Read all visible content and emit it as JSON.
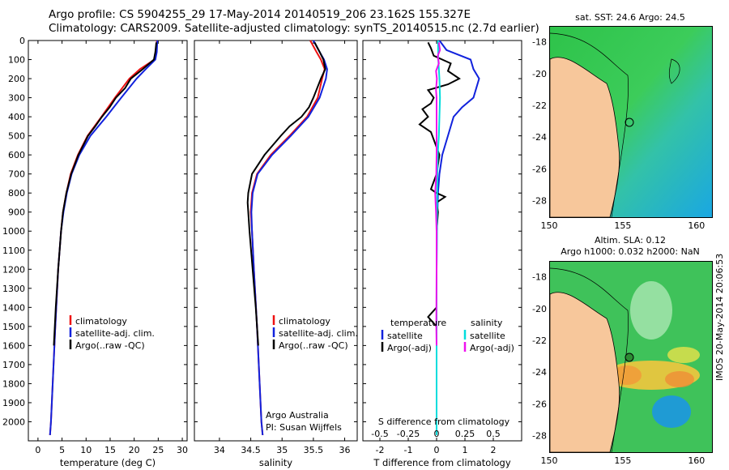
{
  "header": {
    "line1": "Argo profile: CS 5904255_29 17-May-2014 20140519_206 23.162S 155.327E",
    "line2": "Climatology: CARS2009. Satellite-adjusted climatology: synTS_20140515.nc (2.7d earlier)"
  },
  "colors": {
    "climatology": "#ee1111",
    "satellite": "#1122dd",
    "argo": "#000000",
    "sat_salinity": "#00dddd",
    "argo_salinity": "#ee11ee",
    "land": "#f7c79b"
  },
  "chart_data": [
    {
      "type": "line",
      "title": "",
      "xlabel": "temperature (deg C)",
      "ylabel": "",
      "xlim": [
        -2,
        31
      ],
      "ylim": [
        2100,
        0
      ],
      "xticks": [
        0,
        5,
        10,
        15,
        20,
        25,
        30
      ],
      "yticks": [
        0,
        100,
        200,
        300,
        400,
        500,
        600,
        700,
        800,
        900,
        1000,
        1100,
        1200,
        1300,
        1400,
        1500,
        1600,
        1700,
        1800,
        1900,
        2000
      ],
      "legend": [
        "climatology",
        "satellite-adj. clim.",
        "Argo(..raw -QC)"
      ],
      "legend_position": "center-left",
      "series": [
        {
          "name": "climatology",
          "depth": [
            0,
            60,
            100,
            150,
            200,
            300,
            400,
            500,
            600,
            700,
            800,
            900,
            1000,
            1200,
            1500,
            2000,
            2070
          ],
          "values": [
            24.7,
            24.6,
            24.2,
            21.2,
            19,
            16,
            13.2,
            10.3,
            8.3,
            6.8,
            5.9,
            5.2,
            4.8,
            4.2,
            3.6,
            2.7,
            2.5
          ]
        },
        {
          "name": "satellite-adj. clim.",
          "depth": [
            0,
            60,
            100,
            150,
            200,
            300,
            400,
            500,
            600,
            700,
            800,
            900,
            1000,
            1200,
            1500,
            2000,
            2070
          ],
          "values": [
            24.8,
            24.7,
            24.4,
            22.4,
            20.5,
            17.3,
            14.2,
            10.9,
            8.6,
            7,
            6,
            5.3,
            4.8,
            4.2,
            3.6,
            2.7,
            2.5
          ]
        },
        {
          "name": "Argo(..raw -QC)",
          "depth": [
            10,
            60,
            100,
            150,
            200,
            250,
            300,
            350,
            400,
            450,
            500,
            600,
            700,
            800,
            900,
            1000,
            1200,
            1400,
            1500,
            1600
          ],
          "values": [
            24.6,
            24.4,
            24.1,
            21.8,
            19.3,
            18.1,
            16.2,
            14.9,
            13.3,
            11.9,
            10.4,
            8.4,
            6.9,
            5.9,
            5.2,
            4.8,
            4.2,
            3.7,
            3.5,
            3.3
          ]
        }
      ]
    },
    {
      "type": "line",
      "title": "",
      "xlabel": "salinity",
      "ylabel": "",
      "xlim": [
        33.6,
        36.2
      ],
      "ylim": [
        2100,
        0
      ],
      "xticks": [
        34,
        34.5,
        35,
        35.5,
        36
      ],
      "legend": [
        "climatology",
        "satellite-adj. clim.",
        "Argo(..raw -QC)"
      ],
      "legend_position": "center-left",
      "annotations": [
        "Argo Australia",
        "PI: Susan Wijffels"
      ],
      "series": [
        {
          "name": "climatology",
          "depth": [
            0,
            60,
            100,
            150,
            200,
            300,
            400,
            500,
            600,
            700,
            800,
            900,
            1000,
            1200,
            1500,
            2000,
            2070
          ],
          "values": [
            35.45,
            35.55,
            35.62,
            35.68,
            35.64,
            35.57,
            35.4,
            35.12,
            34.82,
            34.6,
            34.52,
            34.5,
            34.52,
            34.55,
            34.6,
            34.67,
            34.69
          ]
        },
        {
          "name": "satellite-adj. clim.",
          "depth": [
            0,
            60,
            100,
            150,
            200,
            300,
            400,
            500,
            600,
            700,
            800,
            900,
            1000,
            1200,
            1500,
            2000,
            2070
          ],
          "values": [
            35.5,
            35.6,
            35.67,
            35.72,
            35.7,
            35.6,
            35.42,
            35.14,
            34.84,
            34.61,
            34.53,
            34.51,
            34.52,
            34.55,
            34.6,
            34.67,
            34.69
          ]
        },
        {
          "name": "Argo(..raw -QC)",
          "depth": [
            10,
            60,
            100,
            150,
            200,
            250,
            300,
            350,
            400,
            450,
            500,
            600,
            700,
            800,
            850,
            900,
            1000,
            1200,
            1400,
            1500,
            1600
          ],
          "values": [
            35.52,
            35.6,
            35.66,
            35.69,
            35.62,
            35.56,
            35.5,
            35.43,
            35.31,
            35.12,
            34.98,
            34.72,
            34.52,
            34.46,
            34.45,
            34.46,
            34.48,
            34.53,
            34.58,
            34.6,
            34.62
          ]
        }
      ]
    },
    {
      "type": "line",
      "title": "",
      "xlabel": "T difference from climatology",
      "xlabel_top": "S difference from climatology",
      "ylabel": "",
      "xlim": [
        -2.6,
        3.0
      ],
      "ylim": [
        2100,
        0
      ],
      "xticks": [
        -2,
        -1,
        0,
        1,
        2
      ],
      "xticks_top": [
        -0.5,
        -0.25,
        0,
        0.25,
        0.5
      ],
      "legend_titles": [
        "temperature",
        "salinity"
      ],
      "legend": [
        "satellite",
        "Argo(-adj)",
        "satellite",
        "Argo(-adj)"
      ],
      "legend_position": "lower-center",
      "series": [
        {
          "name": "temperature satellite",
          "depth": [
            0,
            50,
            100,
            150,
            200,
            250,
            300,
            350,
            400,
            500,
            600,
            700,
            800,
            900,
            1000,
            1200,
            1500,
            2070
          ],
          "values": [
            0.1,
            0.35,
            1.2,
            1.3,
            1.5,
            1.4,
            1.3,
            0.9,
            0.6,
            0.4,
            0.2,
            0.1,
            0.05,
            0.03,
            0.01,
            0.0,
            0.0,
            0.0
          ]
        },
        {
          "name": "temperature Argo(-adj)",
          "depth": [
            10,
            40,
            80,
            120,
            160,
            200,
            230,
            260,
            300,
            330,
            360,
            400,
            440,
            480,
            520,
            600,
            700,
            780,
            800,
            820,
            850,
            900,
            1000,
            1200,
            1400,
            1450,
            1500,
            1600
          ],
          "values": [
            -0.3,
            -0.2,
            -0.1,
            0.5,
            0.4,
            0.8,
            0.4,
            -0.3,
            -0.1,
            -0.2,
            -0.5,
            -0.3,
            -0.6,
            -0.2,
            -0.1,
            0.1,
            0.0,
            -0.2,
            0.0,
            0.3,
            0.0,
            0.05,
            0.0,
            0.0,
            0.0,
            -0.3,
            0.0,
            0.0
          ]
        },
        {
          "name": "salinity satellite",
          "depth": [
            0,
            100,
            200,
            300,
            400,
            500,
            600,
            800,
            1000,
            1200,
            1500,
            2070
          ],
          "values": [
            0.05,
            0.06,
            0.1,
            0.12,
            0.1,
            0.08,
            0.04,
            0.02,
            0.01,
            0.0,
            0.0,
            0.0
          ]
        },
        {
          "name": "salinity Argo(-adj)",
          "depth": [
            10,
            50,
            80,
            120,
            160,
            200,
            260,
            300,
            360,
            400,
            450,
            500,
            600,
            700,
            800,
            900,
            1000,
            1200,
            1500,
            1600
          ],
          "values": [
            0.08,
            0.12,
            0.04,
            0.08,
            -0.02,
            0.01,
            -0.02,
            0.0,
            0.0,
            0.0,
            0.0,
            0.0,
            0.0,
            -0.01,
            -0.05,
            -0.02,
            0.0,
            0.0,
            -0.01,
            0.0
          ]
        }
      ]
    },
    {
      "type": "heatmap",
      "title": "sat. SST: 24.6 Argo: 24.5",
      "xlim": [
        150,
        161
      ],
      "ylim": [
        -29,
        -17
      ],
      "xticks": [
        150,
        155,
        160
      ],
      "yticks": [
        -18,
        -20,
        -22,
        -24,
        -26,
        -28
      ],
      "marker": {
        "lon": 155.327,
        "lat": -23.162
      }
    },
    {
      "type": "heatmap",
      "title": "Altim. SLA: 0.12",
      "subtitle": "Argo h1000: 0.032 h2000: NaN",
      "xlim": [
        150,
        161
      ],
      "ylim": [
        -29,
        -17
      ],
      "xticks": [
        150,
        155,
        160
      ],
      "yticks": [
        -18,
        -20,
        -22,
        -24,
        -26,
        -28
      ],
      "marker": {
        "lon": 155.327,
        "lat": -23.162
      }
    }
  ],
  "footer": {
    "credit": "IMOS 20-May-2014 20:06:53"
  }
}
